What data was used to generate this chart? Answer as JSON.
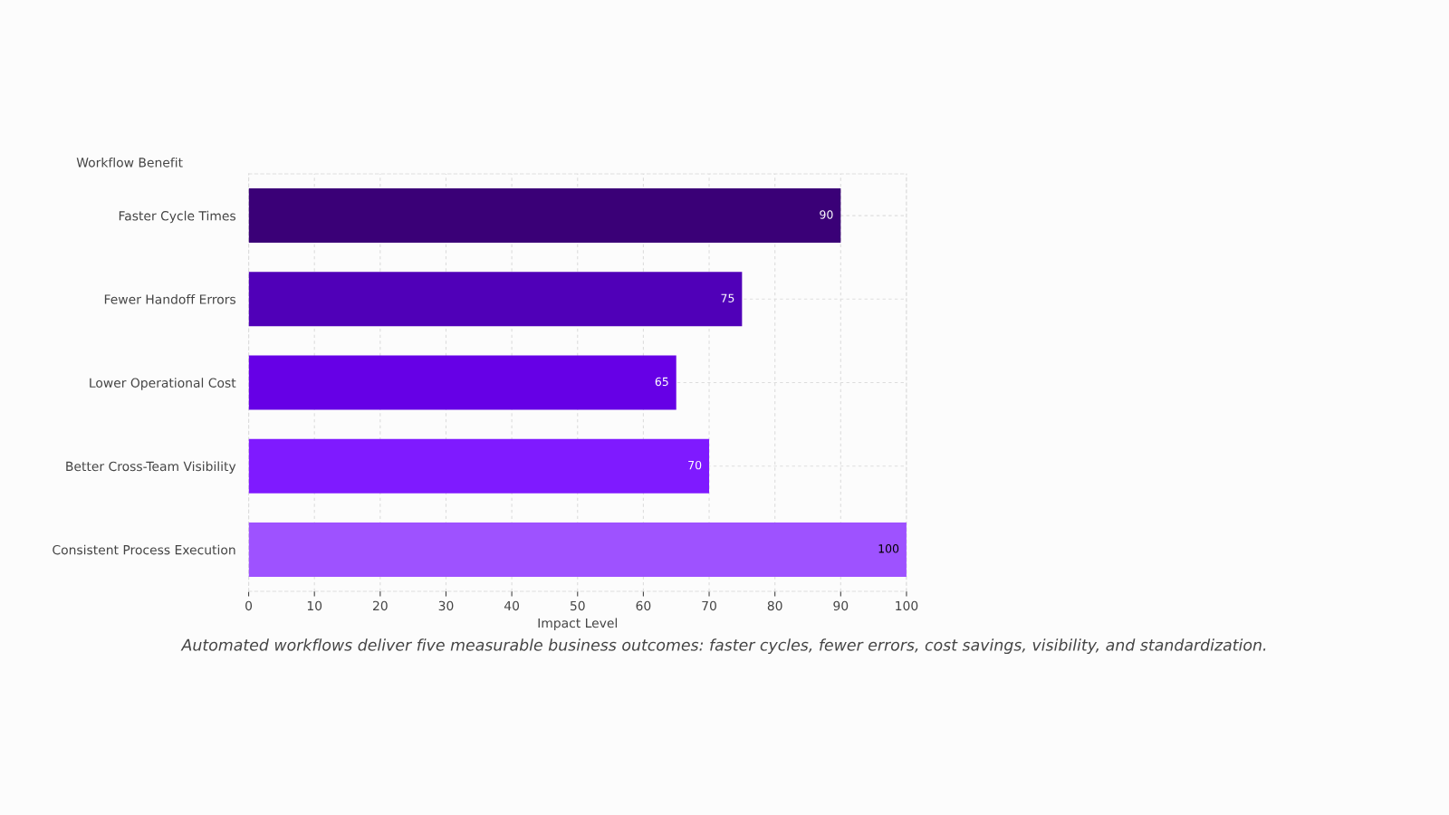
{
  "chart_data": {
    "type": "bar",
    "orientation": "horizontal",
    "ylabel": "Workflow Benefit",
    "xlabel": "Impact Level",
    "categories": [
      "Faster Cycle Times",
      "Fewer Handoff Errors",
      "Lower Operational Cost",
      "Better Cross-Team Visibility",
      "Consistent Process Execution"
    ],
    "values": [
      90,
      75,
      65,
      70,
      100
    ],
    "colors": [
      "#3a0077",
      "#5000b8",
      "#6600e6",
      "#7f1aff",
      "#9e52ff"
    ],
    "xlim": [
      0,
      100
    ],
    "xticks": [
      0,
      10,
      20,
      30,
      40,
      50,
      60,
      70,
      80,
      90,
      100
    ],
    "grid": true,
    "data_labels": true,
    "annotations": [
      "Automated workflows deliver five measurable business outcomes: faster cycles, fewer errors, cost savings, visibility, and standardization."
    ]
  }
}
